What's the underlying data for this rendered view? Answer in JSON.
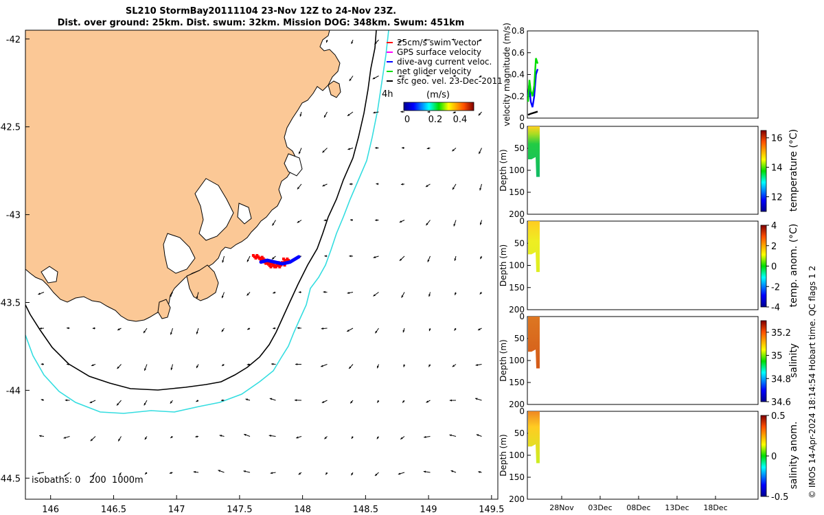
{
  "title": {
    "line1": "SL210 StormBay20111104 23-Nov 12Z to 24-Nov 23Z.",
    "line2": "Dist. over ground: 25km. Dist. swum: 32km. Mission DOG: 348km. Swum: 451km"
  },
  "colors": {
    "land": "#fbc896",
    "isobath_200": "#000000",
    "isobath_1000": "#33dde0",
    "swim_vector": "#ff0000",
    "gps_velocity": "#ff00ff",
    "dive_avg": "#0000ff",
    "net_glider": "#00dd00",
    "sfc_geo": "#000000"
  },
  "legend": {
    "items": [
      {
        "label": "25cm/s swim vector",
        "color": "#ff0000"
      },
      {
        "label": "GPS surface velocity",
        "color": "#ff00ff"
      },
      {
        "label": "dive-avg current veloc.",
        "color": "#0000ff"
      },
      {
        "label": "net glider velocity",
        "color": "#00dd00"
      },
      {
        "label": "sfc geo. vel. 23-Dec-2011",
        "color": "#000000"
      }
    ],
    "time_label": "4h",
    "speed_unit": "(m/s)",
    "speed_ticks": [
      "0",
      "0.2",
      "0.4"
    ]
  },
  "isobath_label": "isobaths: 0   200  1000m",
  "credit": "© IMOS 14-Apr-2024 18:14:54 Hobart time. QC flags 1  2",
  "chart_data": [
    {
      "type": "scatter",
      "name": "map",
      "xlim": [
        145.8,
        149.55
      ],
      "ylim": [
        -44.62,
        -41.95
      ],
      "xticks": [
        146,
        146.5,
        147,
        147.5,
        148,
        148.5,
        149,
        149.5
      ],
      "xtick_labels": [
        "146",
        "146.5",
        "147",
        "147.5",
        "148",
        "148.5",
        "149",
        "149.5"
      ],
      "yticks": [
        -42,
        -42.5,
        -43,
        -43.5,
        -44,
        -44.5
      ],
      "ytick_labels": [
        "-42",
        "-42.5",
        "-43",
        "-43.5",
        "-44",
        "-44.5"
      ],
      "glider_track": {
        "lon": [
          147.62,
          147.66,
          147.7,
          147.74,
          147.78,
          147.82,
          147.86
        ],
        "lat": [
          -43.24,
          -43.25,
          -43.27,
          -43.29,
          -43.29,
          -43.28,
          -43.26
        ]
      },
      "current_track": {
        "lon": [
          147.67,
          147.72,
          147.78,
          147.84,
          147.9,
          147.97
        ],
        "lat": [
          -43.27,
          -43.26,
          -43.27,
          -43.28,
          -43.27,
          -43.24
        ]
      }
    },
    {
      "type": "line",
      "name": "velocity",
      "ylabel": "velocity magnitude (m/s)",
      "ylim": [
        0,
        0.8
      ],
      "yticks": [
        0,
        0.2,
        0.4,
        0.6,
        0.8
      ],
      "ytick_labels": [
        "0",
        "0.2",
        "0.4",
        "0.6",
        "0.8"
      ],
      "series": [
        {
          "name": "dive-avg current veloc.",
          "color": "#0000ff",
          "x": [
            0.2,
            0.5,
            1.0,
            1.5,
            2.0,
            2.5,
            3.0
          ],
          "values": [
            0.2,
            0.3,
            0.15,
            0.1,
            0.2,
            0.4,
            0.45
          ]
        },
        {
          "name": "net glider velocity",
          "color": "#00dd00",
          "x": [
            0.2,
            0.6,
            1.0,
            1.5,
            2.0,
            2.5,
            3.0
          ],
          "values": [
            0.15,
            0.35,
            0.25,
            0.2,
            0.3,
            0.55,
            0.5
          ]
        },
        {
          "name": "sfc geo. vel.",
          "color": "#000000",
          "x": [
            0.2,
            1.0,
            2.0,
            3.0
          ],
          "values": [
            0.03,
            0.04,
            0.05,
            0.06
          ]
        }
      ]
    },
    {
      "type": "heatmap",
      "name": "temperature",
      "ylabel": "Depth (m)",
      "ylim": [
        200,
        0
      ],
      "yticks": [
        0,
        50,
        100,
        150,
        200
      ],
      "ytick_labels": [
        "0",
        "50",
        "100",
        "150",
        "200"
      ],
      "cbar_label": "temperature (°C)",
      "cbar_range": [
        11,
        16.5
      ],
      "cbar_ticks": [
        "16",
        "14",
        "12"
      ],
      "profile_max_depth_m": [
        75,
        70,
        115
      ]
    },
    {
      "type": "heatmap",
      "name": "temp_anom",
      "ylabel": "Depth (m)",
      "ylim": [
        200,
        0
      ],
      "yticks": [
        0,
        50,
        100,
        150,
        200
      ],
      "ytick_labels": [
        "0",
        "50",
        "100",
        "150",
        "200"
      ],
      "cbar_label": "temp. anom. (°C)",
      "cbar_range": [
        -4,
        4
      ],
      "cbar_ticks": [
        "4",
        "2",
        "0",
        "-2",
        "-4"
      ],
      "profile_max_depth_m": [
        75,
        70,
        115
      ]
    },
    {
      "type": "heatmap",
      "name": "salinity",
      "ylabel": "Depth (m)",
      "ylim": [
        200,
        0
      ],
      "yticks": [
        0,
        50,
        100,
        150,
        200
      ],
      "ytick_labels": [
        "0",
        "50",
        "100",
        "150",
        "200"
      ],
      "cbar_label": "salinity",
      "cbar_range": [
        34.6,
        35.3
      ],
      "cbar_ticks": [
        "35.2",
        "35",
        "34.8",
        "34.6"
      ],
      "profile_max_depth_m": [
        80,
        75,
        118
      ]
    },
    {
      "type": "heatmap",
      "name": "salinity_anom",
      "ylabel": "Depth (m)",
      "ylim": [
        200,
        0
      ],
      "yticks": [
        0,
        50,
        100,
        150,
        200
      ],
      "ytick_labels": [
        "0",
        "50",
        "100",
        "150",
        "200"
      ],
      "cbar_label": "salinity anom.",
      "cbar_range": [
        -0.5,
        0.5
      ],
      "cbar_ticks": [
        "0.5",
        "0",
        "-0.5"
      ],
      "profile_max_depth_m": [
        80,
        75,
        118
      ],
      "x_ticks": [
        "28Nov",
        "03Dec",
        "08Dec",
        "13Dec",
        "18Dec"
      ]
    }
  ]
}
